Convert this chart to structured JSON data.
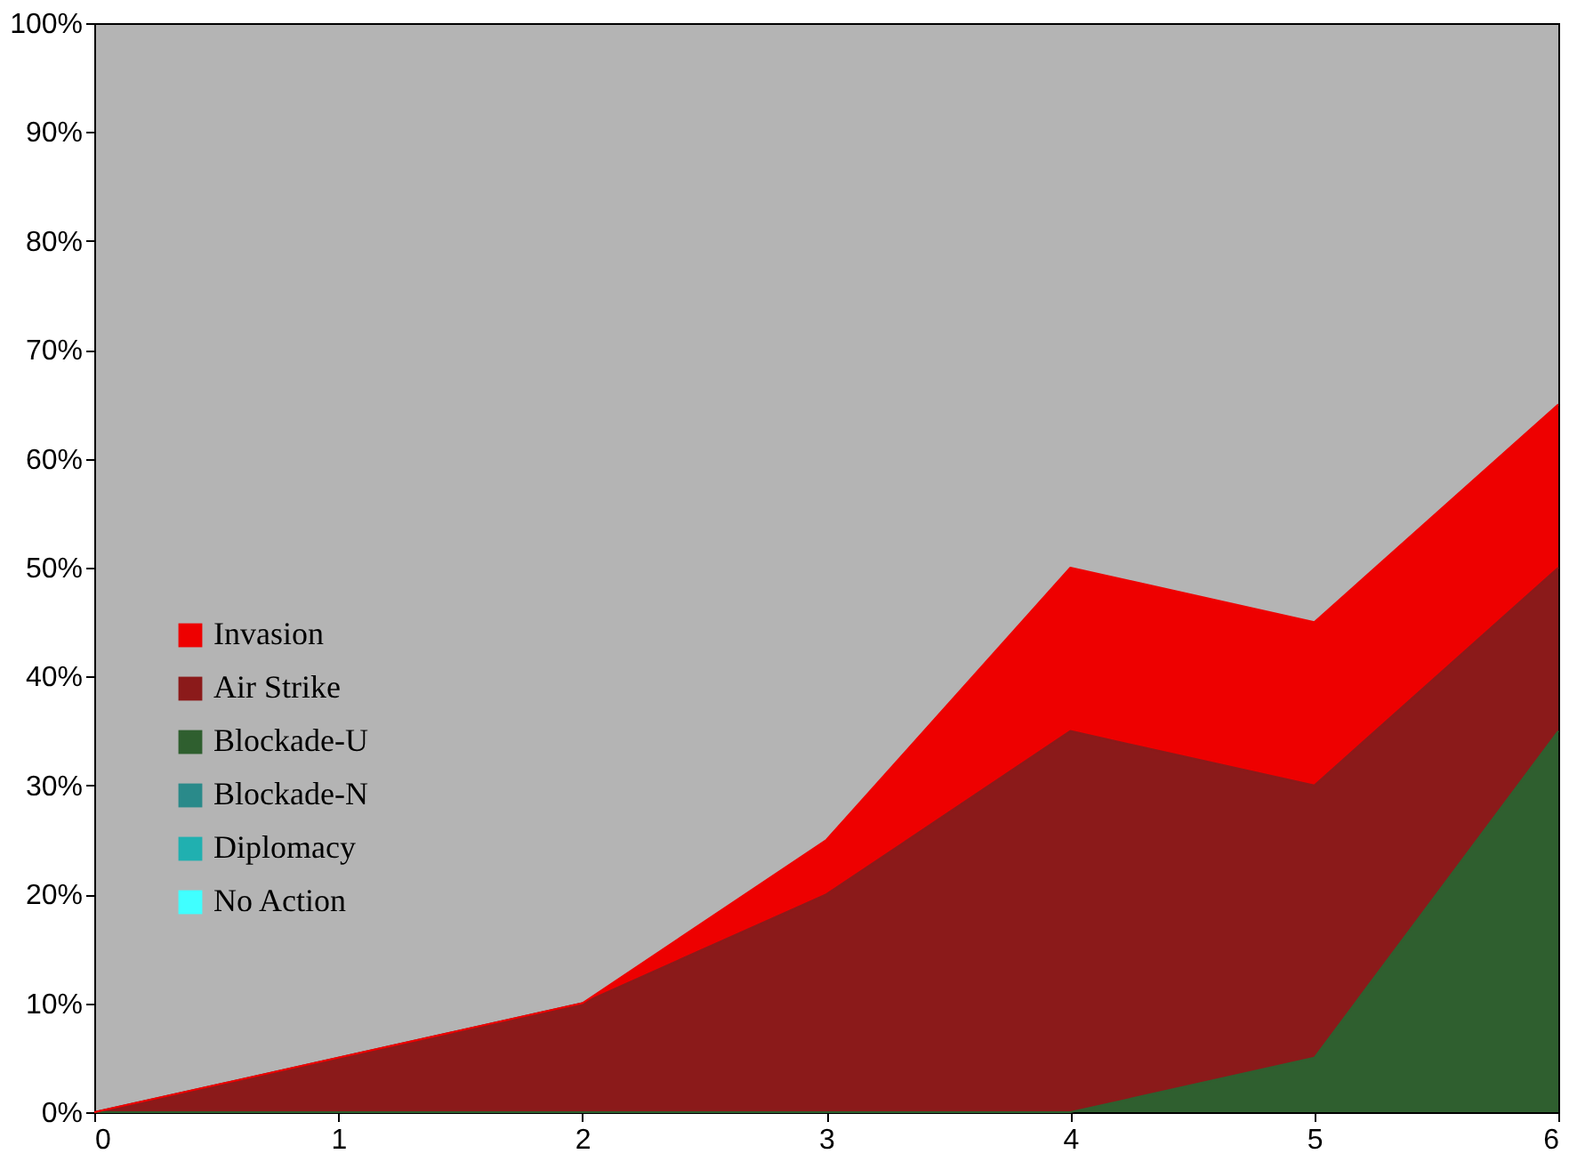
{
  "chart_data": {
    "type": "area",
    "stacked": true,
    "x": [
      0,
      1,
      2,
      3,
      4,
      5,
      6
    ],
    "series": [
      {
        "name": "No Action",
        "color": "#40ffff",
        "values": [
          null,
          null,
          null,
          null,
          null,
          null,
          null
        ]
      },
      {
        "name": "Diplomacy",
        "color": "#20b0b0",
        "values": [
          null,
          null,
          null,
          null,
          null,
          null,
          null
        ]
      },
      {
        "name": "Blockade-N",
        "color": "#2a8a8a",
        "values": [
          null,
          null,
          null,
          null,
          null,
          null,
          null
        ]
      },
      {
        "name": "Blockade-U",
        "color": "#2f5f2f",
        "values": [
          0,
          0,
          0,
          0,
          0,
          5,
          35
        ]
      },
      {
        "name": "Air Strike",
        "color": "#8b1a1a",
        "values": [
          0,
          5,
          10,
          20,
          35,
          25,
          15
        ]
      },
      {
        "name": "Invasion",
        "color": "#ee0000",
        "values": [
          0,
          0,
          0,
          5,
          15,
          15,
          15
        ]
      }
    ],
    "xlim": [
      0,
      6
    ],
    "xticks": [
      0,
      1,
      2,
      3,
      4,
      5,
      6
    ],
    "ylim": [
      0,
      100
    ],
    "yticks": [
      {
        "value": 0,
        "label": "0%"
      },
      {
        "value": 10,
        "label": "10%"
      },
      {
        "value": 20,
        "label": "20%"
      },
      {
        "value": 30,
        "label": "30%"
      },
      {
        "value": 40,
        "label": "40%"
      },
      {
        "value": 50,
        "label": "50%"
      },
      {
        "value": 60,
        "label": "60%"
      },
      {
        "value": 70,
        "label": "70%"
      },
      {
        "value": 80,
        "label": "80%"
      },
      {
        "value": 90,
        "label": "90%"
      },
      {
        "value": 100,
        "label": "100%"
      }
    ],
    "grid": false,
    "legend": "left"
  }
}
